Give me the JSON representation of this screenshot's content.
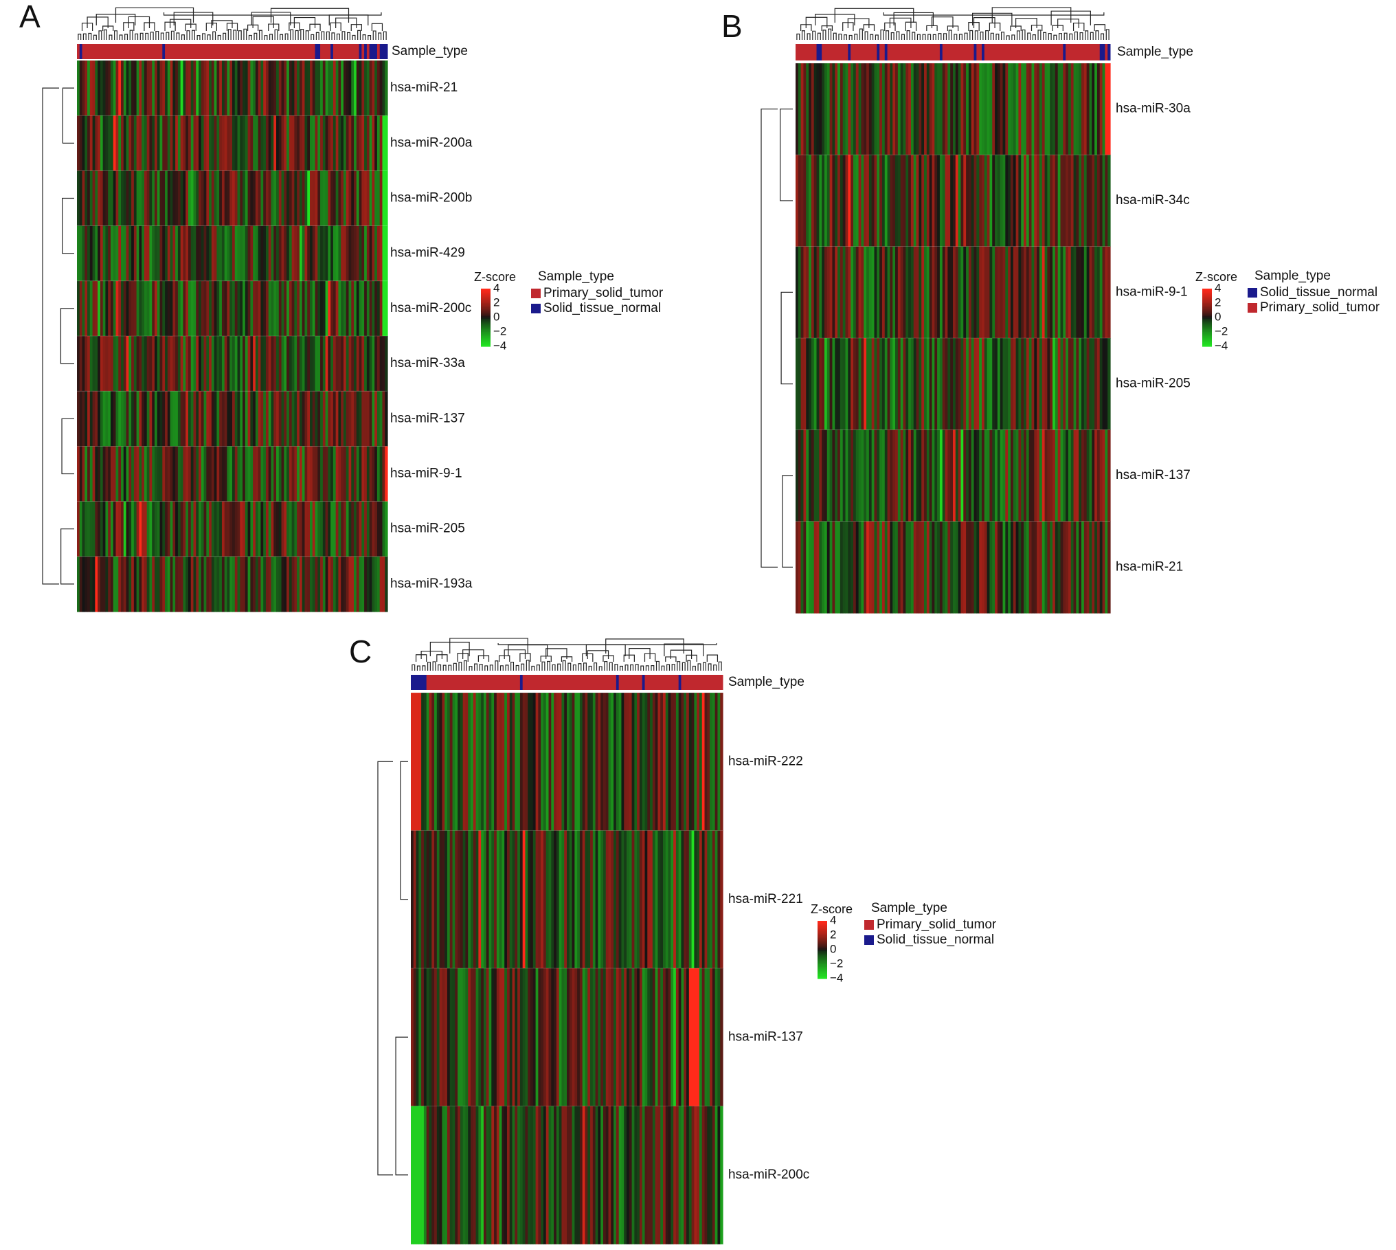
{
  "chart_data": [
    {
      "panel": "A",
      "type": "heatmap",
      "annotation_label": "Sample_type",
      "rows": [
        "hsa-miR-21",
        "hsa-miR-200a",
        "hsa-miR-200b",
        "hsa-miR-429",
        "hsa-miR-200c",
        "hsa-miR-33a",
        "hsa-miR-137",
        "hsa-miR-9-1",
        "hsa-miR-205",
        "hsa-miR-193a"
      ],
      "colorbar": {
        "title": "Z-score",
        "ticks": [
          "4",
          "2",
          "0",
          "−2",
          "−4"
        ],
        "range": [
          -4,
          4
        ]
      },
      "legend": {
        "title": "Sample_type",
        "entries": [
          {
            "label": "Primary_solid_tumor",
            "color": "#c0282e"
          },
          {
            "label": "Solid_tissue_normal",
            "color": "#1a1a8c"
          }
        ]
      }
    },
    {
      "panel": "B",
      "type": "heatmap",
      "annotation_label": "Sample_type",
      "rows": [
        "hsa-miR-30a",
        "hsa-miR-34c",
        "hsa-miR-9-1",
        "hsa-miR-205",
        "hsa-miR-137",
        "hsa-miR-21"
      ],
      "colorbar": {
        "title": "Z-score",
        "ticks": [
          "4",
          "2",
          "0",
          "−2",
          "−4"
        ],
        "range": [
          -4,
          4
        ]
      },
      "legend": {
        "title": "Sample_type",
        "entries": [
          {
            "label": "Solid_tissue_normal",
            "color": "#1a1a8c"
          },
          {
            "label": "Primary_solid_tumor",
            "color": "#c0282e"
          }
        ]
      }
    },
    {
      "panel": "C",
      "type": "heatmap",
      "annotation_label": "Sample_type",
      "rows": [
        "hsa-miR-222",
        "hsa-miR-221",
        "hsa-miR-137",
        "hsa-miR-200c"
      ],
      "colorbar": {
        "title": "Z-score",
        "ticks": [
          "4",
          "2",
          "0",
          "−2",
          "−4"
        ],
        "range": [
          -4,
          4
        ]
      },
      "legend": {
        "title": "Sample_type",
        "entries": [
          {
            "label": "Primary_solid_tumor",
            "color": "#c0282e"
          },
          {
            "label": "Solid_tissue_normal",
            "color": "#1a1a8c"
          }
        ]
      }
    }
  ],
  "colors": {
    "high": "#ff2a1a",
    "mid": "#141414",
    "low": "#22e322",
    "tumor": "#c0282e",
    "normal": "#1a1a8c"
  }
}
